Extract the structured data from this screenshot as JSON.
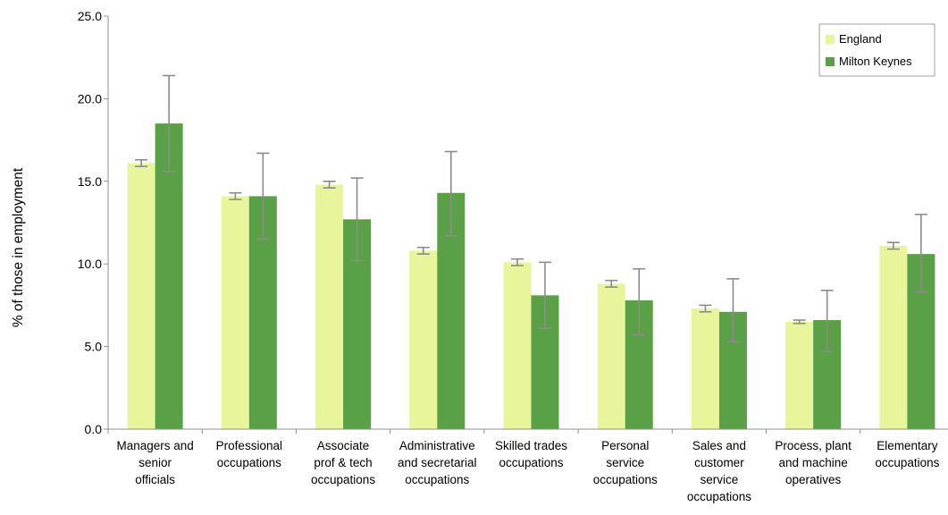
{
  "chart_data": {
    "type": "bar",
    "ylabel": "% of those in employment",
    "ylim": [
      0,
      25
    ],
    "y_ticks": [
      "0.0",
      "5.0",
      "10.0",
      "15.0",
      "20.0",
      "25.0"
    ],
    "grid": false,
    "legend_position": "top-right",
    "categories": [
      [
        "Managers and",
        "senior",
        "officials"
      ],
      [
        "Professional",
        "occupations"
      ],
      [
        "Associate",
        "prof & tech",
        "occupations"
      ],
      [
        "Administrative",
        "and secretarial",
        "occupations"
      ],
      [
        "Skilled trades",
        "occupations"
      ],
      [
        "Personal",
        "service",
        "occupations"
      ],
      [
        "Sales and",
        "customer",
        "service",
        "occupations"
      ],
      [
        "Process, plant",
        "and machine",
        "operatives"
      ],
      [
        "Elementary",
        "occupations"
      ]
    ],
    "series": [
      {
        "name": "England",
        "color": "#e8f59a",
        "values": [
          16.1,
          14.1,
          14.8,
          10.8,
          10.1,
          8.8,
          7.3,
          6.5,
          11.1
        ],
        "error_low": [
          15.9,
          13.9,
          14.6,
          10.6,
          9.9,
          8.6,
          7.1,
          6.4,
          10.9
        ],
        "error_high": [
          16.3,
          14.3,
          15.0,
          11.0,
          10.3,
          9.0,
          7.5,
          6.6,
          11.3
        ]
      },
      {
        "name": "Milton Keynes",
        "color": "#5aa046",
        "values": [
          18.5,
          14.1,
          12.7,
          14.3,
          8.1,
          7.8,
          7.1,
          6.6,
          10.6
        ],
        "error_low": [
          15.6,
          11.5,
          10.2,
          11.7,
          6.1,
          5.7,
          5.3,
          4.7,
          8.3
        ],
        "error_high": [
          21.4,
          16.7,
          15.2,
          16.8,
          10.1,
          9.7,
          9.1,
          8.4,
          13.0
        ]
      }
    ]
  }
}
